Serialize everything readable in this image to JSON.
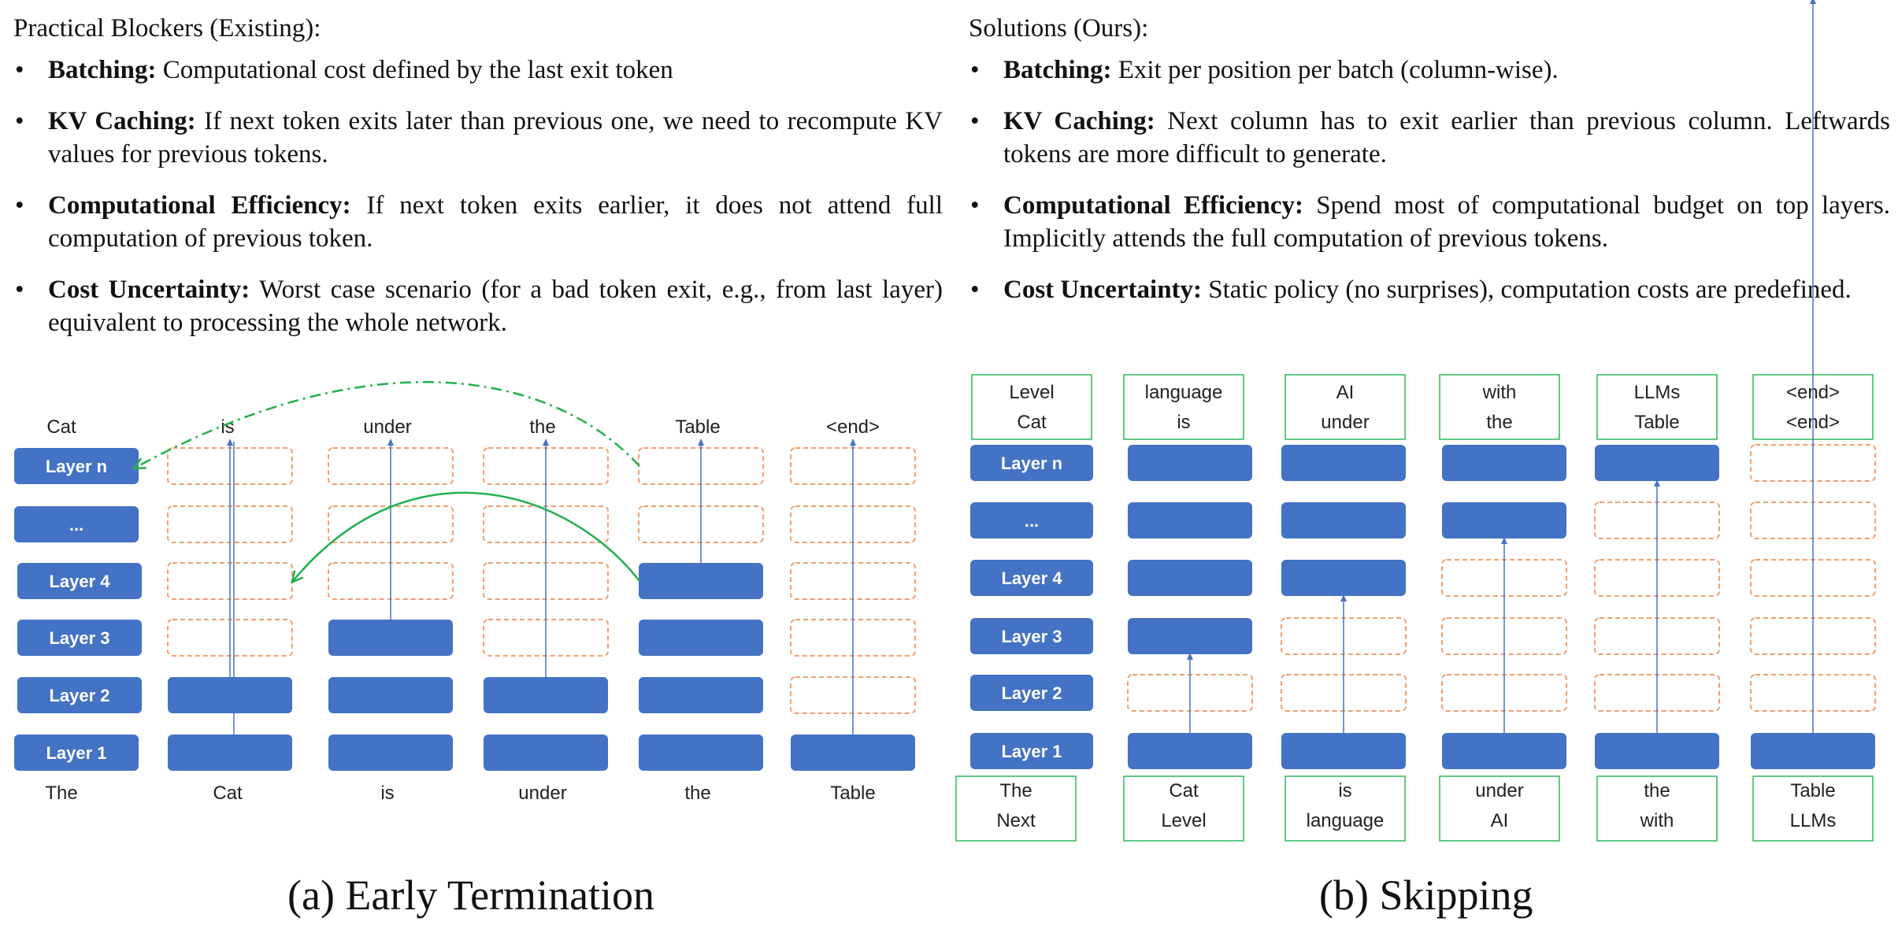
{
  "left_panel": {
    "heading": "Practical Blockers (Existing):",
    "bullets": [
      {
        "term": "Batching:",
        "text": " Computational cost defined by the last exit token"
      },
      {
        "term": "KV Caching:",
        "text": " If next token exits later than previous one, we need to recompute KV values for previous tokens."
      },
      {
        "term": "Computational Efficiency:",
        "text": " If next token exits earlier, it does not attend full computation of previous token."
      },
      {
        "term": "Cost Uncertainty:",
        "text": " Worst case scenario (for a bad token exit, e.g., from last layer) equivalent to processing the whole network."
      }
    ]
  },
  "right_panel": {
    "heading": "Solutions (Ours):",
    "bullets": [
      {
        "term": "Batching:",
        "text": " Exit per position per batch (column-wise)."
      },
      {
        "term": "KV Caching:",
        "text": " Next column has to exit earlier than previous column. Leftwards tokens are more difficult to generate."
      },
      {
        "term": "Computational Efficiency:",
        "text": " Spend most of computational budget on top layers. Implicitly attends the full computation of previous tokens."
      },
      {
        "term": "Cost Uncertainty:",
        "text": " Static policy (no surprises), computation costs are predefined."
      }
    ]
  },
  "diagram_a": {
    "caption": "(a) Early Termination",
    "layer_labels": [
      "Layer n",
      "...",
      "Layer 4",
      "Layer 3",
      "Layer 2",
      "Layer 1"
    ],
    "inputs": [
      "The",
      "Cat",
      "is",
      "under",
      "the",
      "Table"
    ],
    "outputs": [
      "Cat",
      "is",
      "under",
      "the",
      "Table",
      "<end>"
    ],
    "computed_layers_per_column": [
      1,
      2,
      3,
      2,
      4,
      1
    ]
  },
  "diagram_b": {
    "caption": "(b) Skipping",
    "layer_labels": [
      "Layer n",
      "...",
      "Layer 4",
      "Layer 3",
      "Layer 2",
      "Layer 1"
    ],
    "inputs": [
      [
        "The",
        "Next"
      ],
      [
        "Cat",
        "Level"
      ],
      [
        "is",
        "language"
      ],
      [
        "under",
        "AI"
      ],
      [
        "the",
        "with"
      ],
      [
        "Table",
        "LLMs"
      ]
    ],
    "outputs": [
      [
        "Level",
        "Cat"
      ],
      [
        "language",
        "is"
      ],
      [
        "AI",
        "under"
      ],
      [
        "with",
        "the"
      ],
      [
        "LLMs",
        "Table"
      ],
      [
        "<end>",
        "<end>"
      ]
    ],
    "skipped_layers_per_column": [
      0,
      1,
      2,
      3,
      4,
      5
    ]
  },
  "colors": {
    "block_fill": "#4472C4",
    "dashed_border": "#F0A070",
    "arrow": "#4A72C4",
    "curve": "#22B04C",
    "box_border": "#2DB85A"
  }
}
